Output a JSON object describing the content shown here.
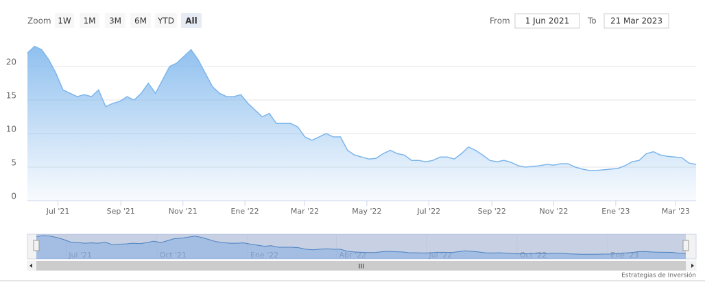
{
  "chart_data": {
    "type": "area",
    "zoom_label": "Zoom",
    "buttons": [
      "1W",
      "1M",
      "3M",
      "6M",
      "YTD",
      "All"
    ],
    "selected_button": 5,
    "from_label": "From",
    "from": "1 Jun 2021",
    "to_label": "To",
    "to": "21 Mar 2023",
    "credits": "Estrategias de Inversión",
    "color": "#7cb5ec",
    "grid": true,
    "values": [
      22,
      23,
      22.5,
      21,
      19,
      16.5,
      16,
      15.5,
      15.8,
      15.5,
      16.5,
      14,
      14.5,
      14.8,
      15.5,
      15,
      16,
      17.5,
      16,
      18,
      20,
      20.5,
      21.5,
      22.5,
      21,
      19,
      17,
      16,
      15.5,
      15.5,
      15.8,
      14.5,
      13.5,
      12.5,
      13,
      11.5,
      11.5,
      11.5,
      11,
      9.5,
      9,
      9.5,
      10,
      9.5,
      9.5,
      7.5,
      6.8,
      6.5,
      6.2,
      6.3,
      7,
      7.5,
      7,
      6.8,
      6,
      6,
      5.8,
      6,
      6.5,
      6.5,
      6.2,
      7,
      8,
      7.5,
      6.8,
      6,
      5.8,
      6,
      5.7,
      5.2,
      5,
      5.1,
      5.2,
      5.4,
      5.3,
      5.5,
      5.5,
      5,
      4.7,
      4.5,
      4.5,
      4.6,
      4.7,
      4.8,
      5.2,
      5.8,
      6,
      7,
      7.3,
      6.8,
      6.6,
      6.5,
      6.4,
      5.6,
      5.4
    ],
    "xlim": [
      0,
      94
    ],
    "xticks": [
      {
        "value": 4.29,
        "label": "Jul '21"
      },
      {
        "value": 13.14,
        "label": "Sep '21"
      },
      {
        "value": 21.86,
        "label": "Nov '21"
      },
      {
        "value": 30.57,
        "label": "Ene '22"
      },
      {
        "value": 39,
        "label": "Mar '22"
      },
      {
        "value": 47.71,
        "label": "May '22"
      },
      {
        "value": 56.43,
        "label": "Jul '22"
      },
      {
        "value": 65.29,
        "label": "Sep '22"
      },
      {
        "value": 74,
        "label": "Nov '22"
      },
      {
        "value": 82.71,
        "label": "Ene '23"
      },
      {
        "value": 91.14,
        "label": "Mar '23"
      }
    ],
    "ylim": [
      0,
      25
    ],
    "yticks": [
      0,
      5,
      10,
      15,
      20
    ],
    "navigator_xticks": [
      {
        "value": 4.29,
        "label": "Jul '21"
      },
      {
        "value": 17.43,
        "label": "Oct '21"
      },
      {
        "value": 30.57,
        "label": "Ene '22"
      },
      {
        "value": 43.43,
        "label": "Abr '22"
      },
      {
        "value": 56.43,
        "label": "Jul '22"
      },
      {
        "value": 69.57,
        "label": "Oct '22"
      },
      {
        "value": 82.71,
        "label": "Ene '23"
      }
    ]
  }
}
